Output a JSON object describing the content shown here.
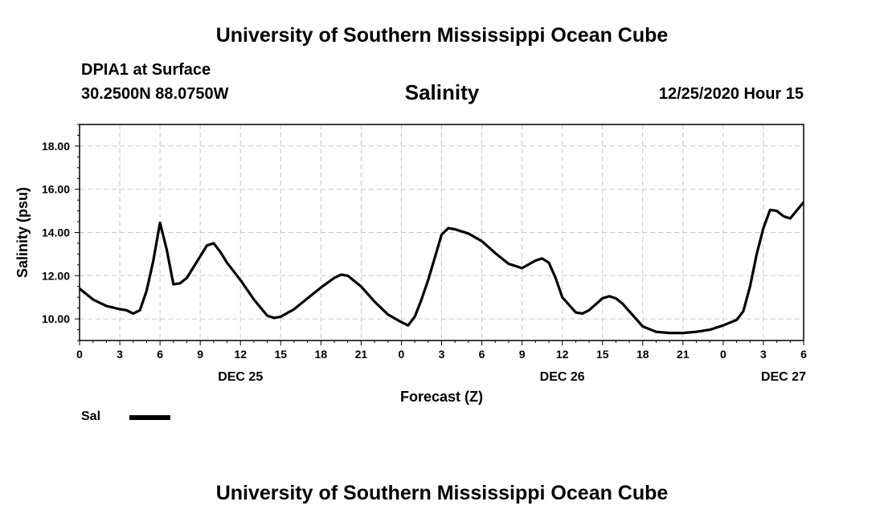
{
  "header": {
    "title": "University of Southern Mississippi Ocean Cube",
    "station": "DPIA1 at Surface",
    "coords": "30.2500N 88.0750W",
    "chart_title": "Salinity",
    "datetime": "12/25/2020 Hour 15"
  },
  "footer": {
    "title": "University of Southern Mississippi Ocean Cube"
  },
  "legend": {
    "label": "Sal",
    "color": "#000000"
  },
  "chart_data": {
    "type": "line",
    "title": "Salinity",
    "xlabel": "Forecast (Z)",
    "ylabel": "Salinity (psu)",
    "xlim": [
      0,
      54
    ],
    "ylim": [
      9.0,
      19.0
    ],
    "grid": true,
    "legend_position": "bottom-left",
    "x_tick_values": [
      0,
      3,
      6,
      9,
      12,
      15,
      18,
      21,
      24,
      27,
      30,
      33,
      36,
      39,
      42,
      45,
      48,
      51,
      54
    ],
    "x_tick_labels": [
      "0",
      "3",
      "6",
      "9",
      "12",
      "15",
      "18",
      "21",
      "0",
      "3",
      "6",
      "9",
      "12",
      "15",
      "18",
      "21",
      "0",
      "3",
      "6"
    ],
    "y_ticks": [
      10,
      12,
      14,
      16,
      18
    ],
    "y_tick_labels": [
      "10.00",
      "12.00",
      "14.00",
      "16.00",
      "18.00"
    ],
    "date_labels": [
      {
        "x": 12,
        "label": "DEC 25"
      },
      {
        "x": 36,
        "label": "DEC 26"
      },
      {
        "x": 52.5,
        "label": "DEC 27"
      }
    ],
    "series": [
      {
        "name": "Sal",
        "x": [
          0,
          1,
          2,
          3,
          3.5,
          4,
          4.5,
          5,
          5.5,
          6,
          6.5,
          7,
          7.5,
          8,
          9,
          9.5,
          10,
          10.5,
          11,
          12,
          13,
          14,
          14.5,
          15,
          16,
          17,
          18,
          19,
          19.5,
          20,
          21,
          22,
          23,
          24,
          24.5,
          25,
          25.5,
          26,
          27,
          27.5,
          28,
          29,
          30,
          31,
          32,
          33,
          34,
          34.5,
          35,
          35.5,
          36,
          37,
          37.5,
          38,
          39,
          39.5,
          40,
          40.5,
          41,
          42,
          43,
          44,
          45,
          46,
          47,
          48,
          49,
          49.5,
          50,
          50.5,
          51,
          51.5,
          52,
          52.5,
          53,
          54
        ],
        "values": [
          11.4,
          10.9,
          10.6,
          10.45,
          10.4,
          10.25,
          10.4,
          11.3,
          12.7,
          14.45,
          13.2,
          11.6,
          11.65,
          11.9,
          12.9,
          13.4,
          13.5,
          13.1,
          12.6,
          11.8,
          10.9,
          10.15,
          10.05,
          10.1,
          10.45,
          10.95,
          11.45,
          11.9,
          12.05,
          12.0,
          11.5,
          10.8,
          10.2,
          9.85,
          9.7,
          10.1,
          10.9,
          11.8,
          13.9,
          14.2,
          14.15,
          13.95,
          13.6,
          13.05,
          12.55,
          12.35,
          12.7,
          12.8,
          12.6,
          11.9,
          11.0,
          10.3,
          10.25,
          10.4,
          10.95,
          11.05,
          10.95,
          10.7,
          10.35,
          9.65,
          9.4,
          9.35,
          9.35,
          9.4,
          9.5,
          9.7,
          9.95,
          10.35,
          11.5,
          13.0,
          14.2,
          15.05,
          15.0,
          14.75,
          14.65,
          15.4
        ]
      }
    ]
  }
}
